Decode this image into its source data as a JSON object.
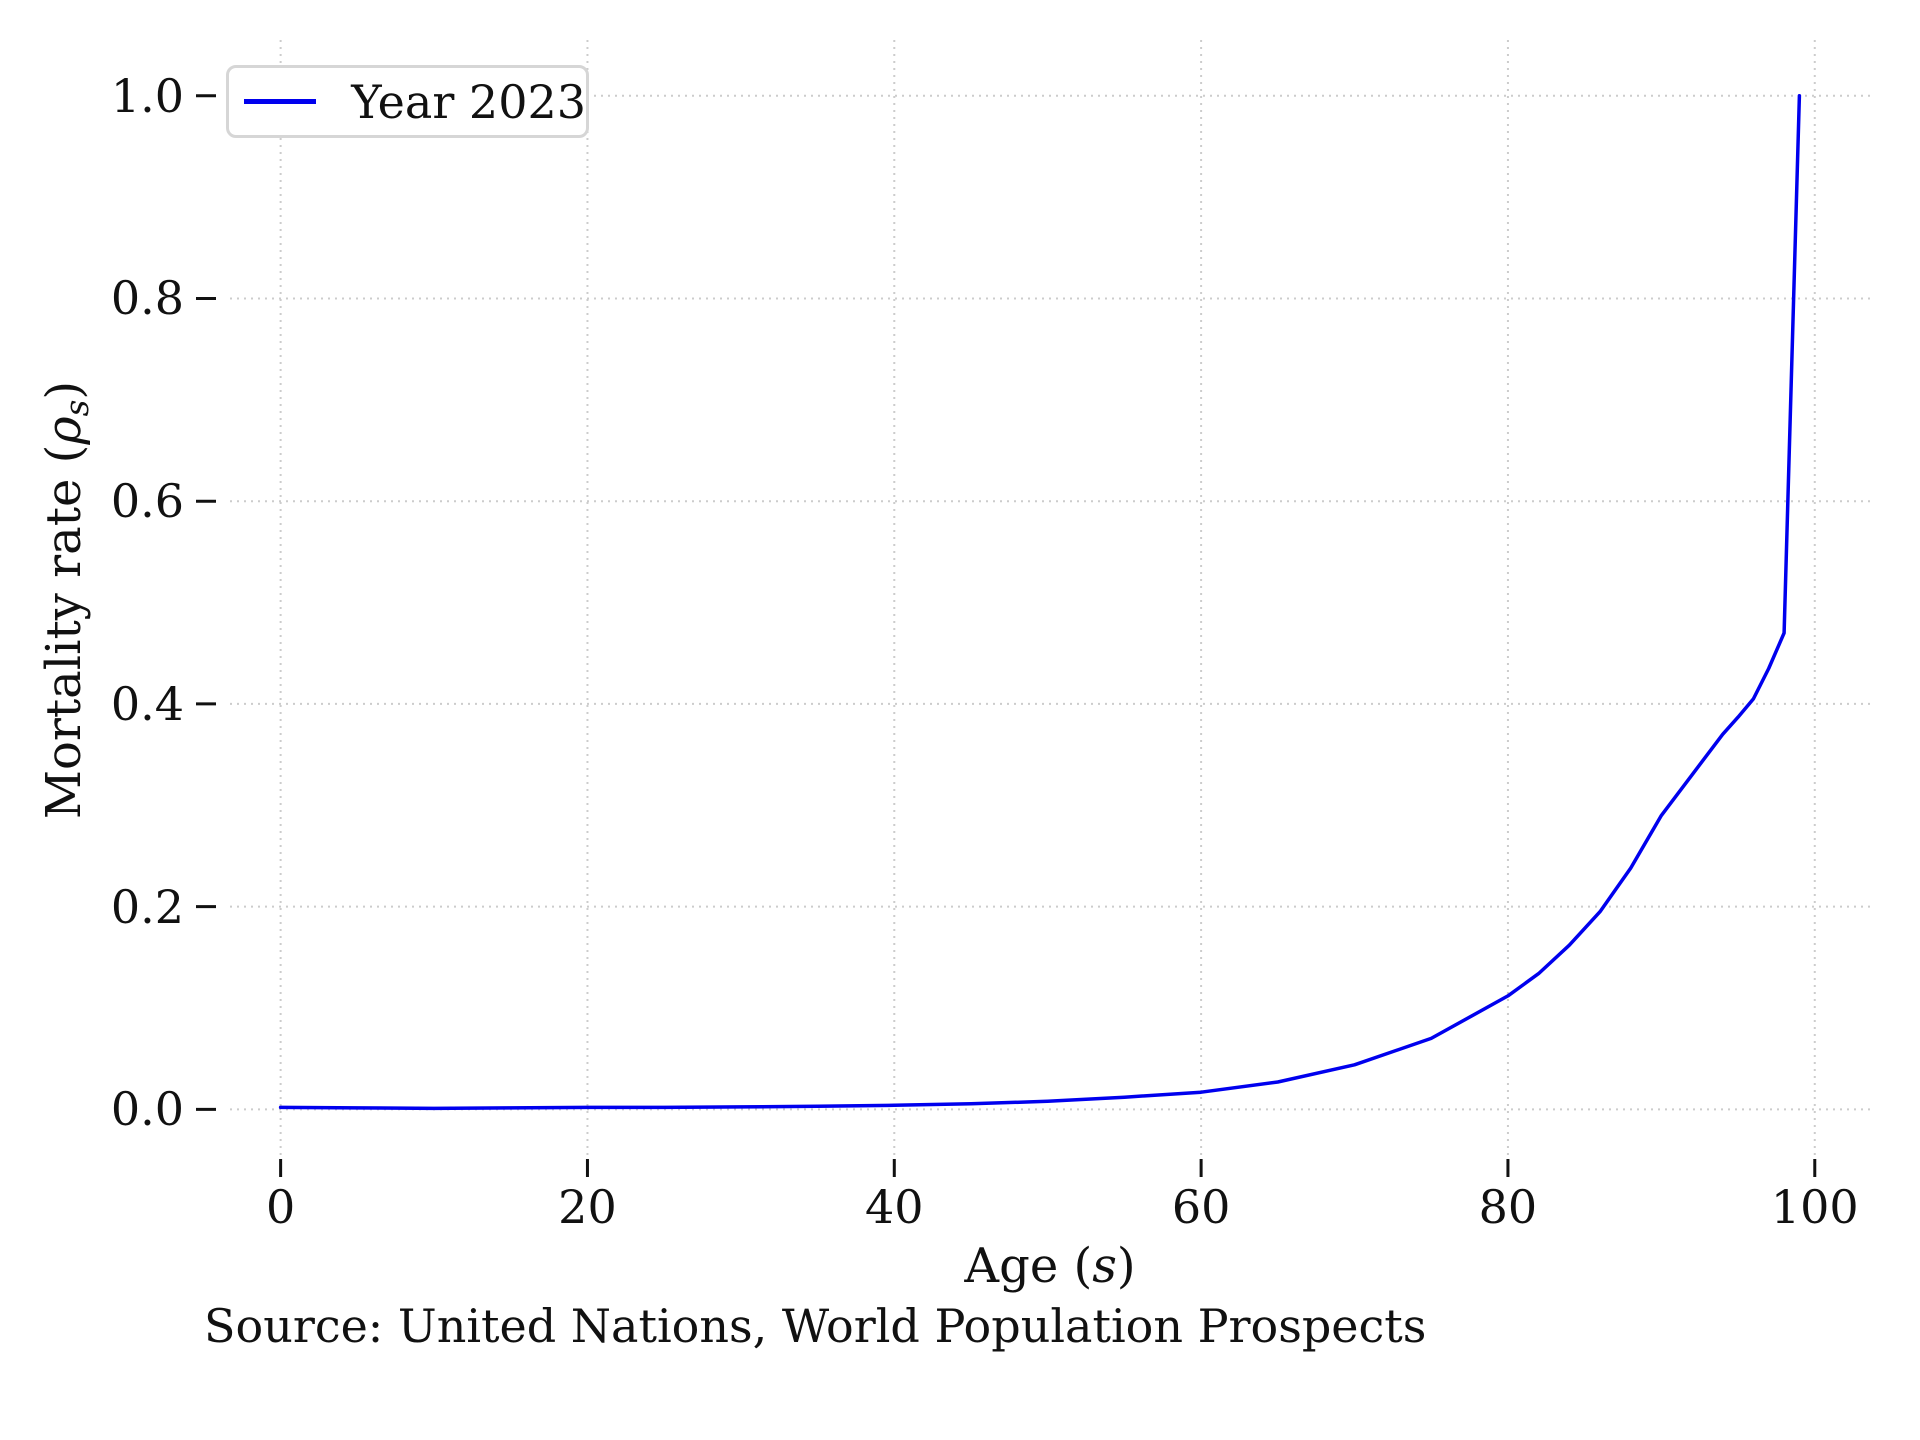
{
  "colors": {
    "line": "#0000EE",
    "grid": "#cccccc",
    "text": "#111111",
    "legend_border": "#d6d6d6",
    "background": "#ffffff"
  },
  "chart_data": {
    "type": "line",
    "title": "",
    "xlabel": {
      "prefix": "Age (",
      "var": "s",
      "suffix": ")"
    },
    "ylabel": {
      "prefix": "Mortality rate (",
      "var": "ρ",
      "sub": "s",
      "suffix": ")"
    },
    "source_note": "Source: United Nations, World Population Prospects",
    "legend": {
      "position": "upper-left",
      "entries": [
        {
          "label": "Year 2023",
          "color": "#0000EE"
        }
      ]
    },
    "grid": true,
    "grid_style": "dotted",
    "xlim": [
      -3.3,
      103.6
    ],
    "ylim": [
      -0.045,
      1.055
    ],
    "x_ticks": [
      0,
      20,
      40,
      60,
      80,
      100
    ],
    "x_tick_labels": [
      "0",
      "20",
      "40",
      "60",
      "80",
      "100"
    ],
    "y_ticks": [
      0.0,
      0.2,
      0.4,
      0.6,
      0.8,
      1.0
    ],
    "y_tick_labels": [
      "0.0",
      "0.2",
      "0.4",
      "0.6",
      "0.8",
      "1.0"
    ],
    "series": [
      {
        "name": "Year 2023",
        "color": "#0000EE",
        "points": [
          [
            0,
            0.002
          ],
          [
            5,
            0.0015
          ],
          [
            10,
            0.001
          ],
          [
            15,
            0.0015
          ],
          [
            20,
            0.002
          ],
          [
            25,
            0.002
          ],
          [
            30,
            0.0025
          ],
          [
            35,
            0.003
          ],
          [
            40,
            0.004
          ],
          [
            45,
            0.0055
          ],
          [
            50,
            0.008
          ],
          [
            55,
            0.012
          ],
          [
            60,
            0.017
          ],
          [
            65,
            0.027
          ],
          [
            70,
            0.044
          ],
          [
            75,
            0.07
          ],
          [
            80,
            0.112
          ],
          [
            82,
            0.134
          ],
          [
            84,
            0.162
          ],
          [
            86,
            0.195
          ],
          [
            88,
            0.238
          ],
          [
            90,
            0.29
          ],
          [
            92,
            0.33
          ],
          [
            94,
            0.37
          ],
          [
            95,
            0.387
          ],
          [
            96,
            0.405
          ],
          [
            97,
            0.435
          ],
          [
            98,
            0.47
          ],
          [
            99,
            1.0
          ]
        ]
      }
    ]
  }
}
